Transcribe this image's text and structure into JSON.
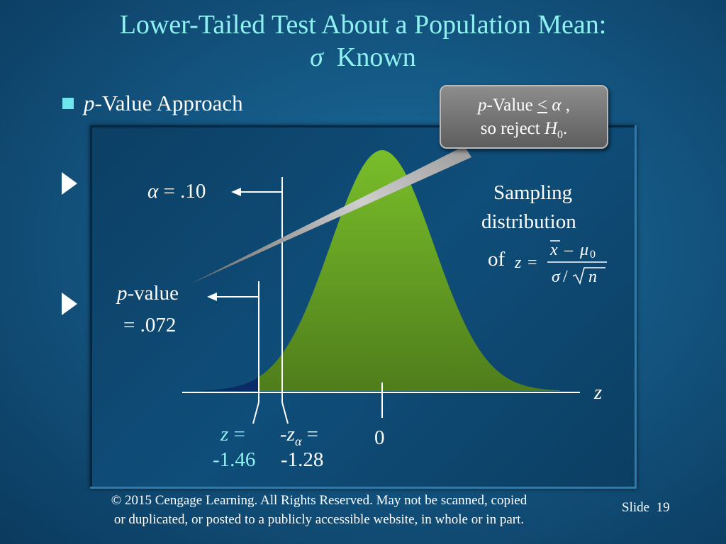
{
  "title": {
    "line1": "Lower-Tailed Test About a Population Mean:",
    "line2_symbol": "σ",
    "line2_text": "Known"
  },
  "bullet": {
    "italic": "p",
    "text": "-Value Approach"
  },
  "callout": {
    "line1_italic": "p",
    "line1_text": "-Value ",
    "line1_leq": "<",
    "line1_alpha": "α",
    "line1_end": " ,",
    "line2_text": "so reject ",
    "line2_italic": "H",
    "line2_sub": "0",
    "line2_end": "."
  },
  "alpha_label": {
    "symbol": "α",
    "text": " = .10"
  },
  "pvalue_label": {
    "italic": "p",
    "text": "-value",
    "line2": "= .072"
  },
  "sampling": {
    "line1": "Sampling",
    "line2": "distribution",
    "line3_prefix": "of",
    "z_var": "z",
    "equals": "=",
    "numer_xbar": "x",
    "numer_minus": "–",
    "numer_mu": "μ",
    "numer_sub": "0",
    "denom_sigma": "σ",
    "denom_slash": "/",
    "denom_n": "n"
  },
  "axis": {
    "z_label": "z"
  },
  "ticks": {
    "z_obs_var": "z",
    "z_obs_eq": " =",
    "z_obs_value": "-1.46",
    "z_alpha_prefix": "-",
    "z_alpha_var": "z",
    "z_alpha_sub": "α",
    "z_alpha_eq": " =",
    "z_alpha_value": "-1.28",
    "zero": "0"
  },
  "footer": {
    "line1": "© 2015  Cengage Learning.  All Rights Reserved.  May not be scanned, copied",
    "line2": "or duplicated, or posted to a publicly accessible website, in whole or in part."
  },
  "slide": {
    "label": "Slide",
    "number": "19"
  },
  "colors": {
    "title": "#8ff0f0",
    "curve_fill": "#6fb025",
    "tail_fill": "#0a2a6a",
    "callout_bg": "#7a7a7a"
  }
}
